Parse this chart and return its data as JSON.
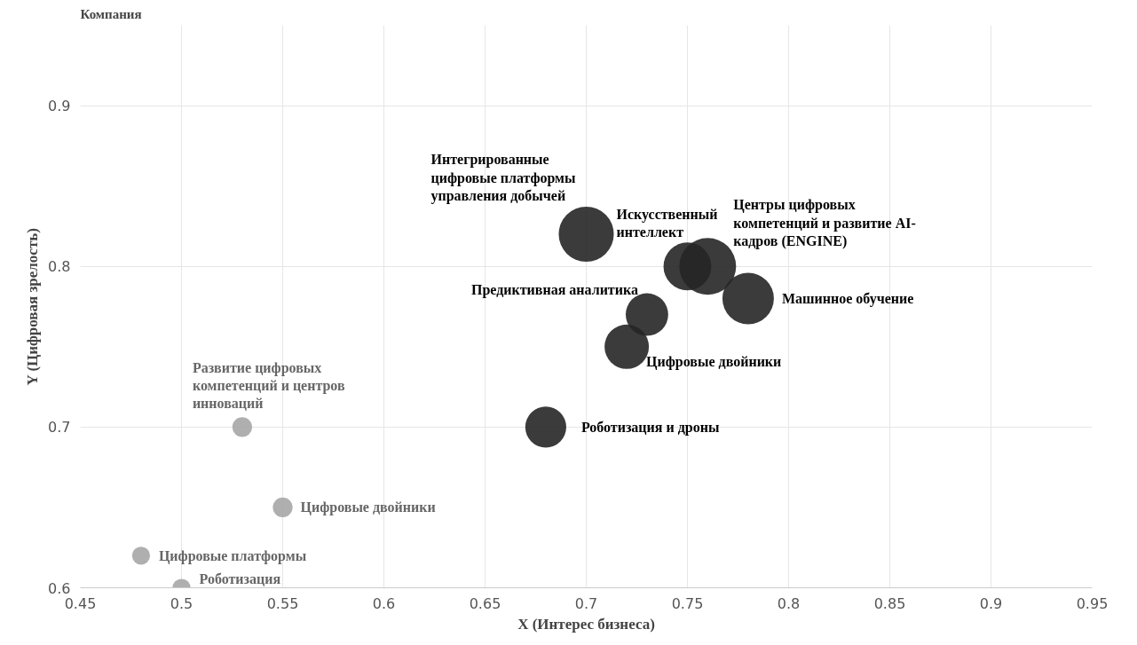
{
  "chart_data": {
    "type": "bubble",
    "xlabel": "X (Интерес бизнеса)",
    "ylabel": "Y (Цифровая зрелость)",
    "legend_title": "Компания",
    "xlim": [
      0.45,
      0.95
    ],
    "xticks": [
      0.45,
      0.5,
      0.55,
      0.6,
      0.65,
      0.7,
      0.75,
      0.8,
      0.85,
      0.9,
      0.95
    ],
    "ylim": [
      0.6,
      0.95
    ],
    "yticks": [
      0.6,
      0.7,
      0.8,
      0.9
    ],
    "grid": true,
    "series": [
      {
        "color": "#a6a6a6",
        "x": [
          0.53,
          0.55,
          0.48,
          0.5
        ],
        "values": [
          0.7,
          0.65,
          0.62,
          0.6
        ],
        "sizes": [
          0.12,
          0.12,
          0.1,
          0.1
        ]
      },
      {
        "color": "#262626",
        "x": [
          0.7,
          0.75,
          0.76,
          0.73,
          0.78,
          0.72,
          0.68
        ],
        "values": [
          0.82,
          0.8,
          0.8,
          0.77,
          0.78,
          0.75,
          0.7
        ],
        "sizes": [
          0.94,
          0.71,
          1,
          0.56,
          0.82,
          0.61,
          0.52
        ]
      }
    ],
    "annotations": [
      {
        "text": "Развитие цифровых\nкомпетенций и центров\nинноваций",
        "x": 0.53,
        "y": 0.7
      },
      {
        "text": "Цифровые двойники",
        "x": 0.55,
        "y": 0.65
      },
      {
        "text": "Цифровые платформы",
        "x": 0.48,
        "y": 0.62
      },
      {
        "text": "Роботизация",
        "x": 0.5,
        "y": 0.6
      },
      {
        "text": "Интегрированные\nцифровые платформы\nуправления добычей",
        "x": 0.7,
        "y": 0.82
      },
      {
        "text": "Искусственный\nинтеллект",
        "x": 0.75,
        "y": 0.8
      },
      {
        "text": "Центры цифровых\nкомпетенций и развитие AI-\nкадров (ENGINE)",
        "x": 0.76,
        "y": 0.8
      },
      {
        "text": "Предиктивная аналитика",
        "x": 0.73,
        "y": 0.77
      },
      {
        "text": "Машинное обучение",
        "x": 0.78,
        "y": 0.78
      },
      {
        "text": "Цифровые двойники",
        "x": 0.72,
        "y": 0.75
      },
      {
        "text": "Роботизация и дроны",
        "x": 0.68,
        "y": 0.7
      }
    ]
  }
}
